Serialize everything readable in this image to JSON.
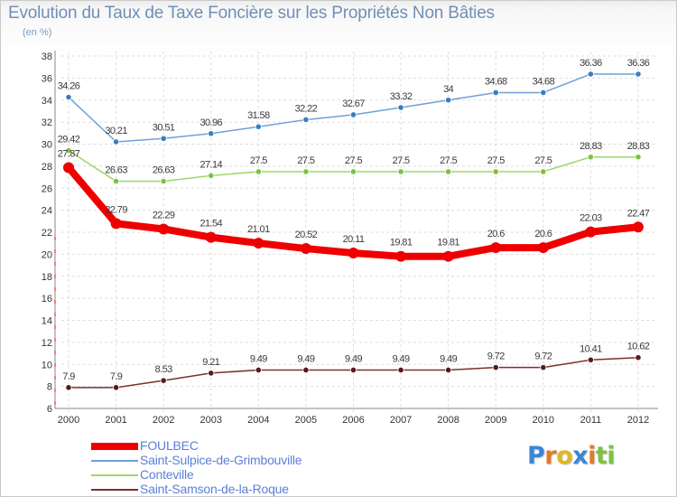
{
  "title": "Evolution du Taux de Taxe Foncière sur les Propriétés Non Bâties",
  "unit_label": "(en %)",
  "logo": {
    "letters": [
      {
        "ch": "P",
        "color": "#3a86d6"
      },
      {
        "ch": "r",
        "color": "#e07b24"
      },
      {
        "ch": "o",
        "color": "#e0b824"
      },
      {
        "ch": "x",
        "color": "#3a86d6"
      },
      {
        "ch": "i",
        "color": "#e07b24"
      },
      {
        "ch": "t",
        "color": "#7cc242"
      },
      {
        "ch": "i",
        "color": "#7cc242"
      }
    ]
  },
  "chart_data": {
    "type": "line",
    "x": [
      "2000",
      "2001",
      "2002",
      "2003",
      "2004",
      "2005",
      "2006",
      "2007",
      "2008",
      "2009",
      "2010",
      "2011",
      "2012"
    ],
    "yticks": [
      "6",
      "8",
      "10",
      "12",
      "14",
      "16",
      "18",
      "20",
      "22",
      "24",
      "26",
      "28",
      "30",
      "32",
      "34",
      "36",
      "38"
    ],
    "ylim": [
      6,
      38
    ],
    "grid": true,
    "series": [
      {
        "name": "Saint-Sulpice-de-Grimbouville",
        "color": "#6fa0d8",
        "marker": "#3a7cc4",
        "values": [
          34.26,
          30.21,
          30.51,
          30.96,
          31.58,
          32.22,
          32.67,
          33.32,
          34,
          34.68,
          34.68,
          36.36,
          36.36
        ],
        "labels": [
          "34.26",
          "30.21",
          "30.51",
          "30.96",
          "31.58",
          "32.22",
          "32.67",
          "33.32",
          "34",
          "34.68",
          "34.68",
          "36.36",
          "36.36"
        ]
      },
      {
        "name": "Conteville",
        "color": "#9ad86a",
        "marker": "#7cc242",
        "values": [
          29.42,
          26.63,
          26.63,
          27.14,
          27.5,
          27.5,
          27.5,
          27.5,
          27.5,
          27.5,
          27.5,
          28.83,
          28.83
        ],
        "labels": [
          "29.42",
          "26.63",
          "26.63",
          "27.14",
          "27.5",
          "27.5",
          "27.5",
          "27.5",
          "27.5",
          "27.5",
          "27.5",
          "28.83",
          "28.83"
        ]
      },
      {
        "name": "FOULBEC",
        "color": "#ee0000",
        "marker": "#ee0000",
        "values": [
          27.87,
          22.79,
          22.29,
          21.54,
          21.01,
          20.52,
          20.11,
          19.81,
          19.81,
          20.6,
          20.6,
          22.03,
          22.47
        ],
        "labels": [
          "27.87",
          "22.79",
          "22.29",
          "21.54",
          "21.01",
          "20.52",
          "20.11",
          "19.81",
          "19.81",
          "20.6",
          "20.6",
          "22.03",
          "22.47"
        ]
      },
      {
        "name": "Saint-Samson-de-la-Roque",
        "color": "#7a3030",
        "marker": "#5a1a1a",
        "values": [
          7.9,
          7.9,
          8.53,
          9.21,
          9.49,
          9.49,
          9.49,
          9.49,
          9.49,
          9.72,
          9.72,
          10.41,
          10.62
        ],
        "labels": [
          "7.9",
          "7.9",
          "8.53",
          "9.21",
          "9.49",
          "9.49",
          "9.49",
          "9.49",
          "9.49",
          "9.72",
          "9.72",
          "10.41",
          "10.62"
        ]
      }
    ],
    "legend": [
      {
        "name": "FOULBEC",
        "color": "#ee0000",
        "thick": true
      },
      {
        "name": "Saint-Sulpice-de-Grimbouville",
        "color": "#6fa0d8",
        "thick": false
      },
      {
        "name": "Conteville",
        "color": "#9ad86a",
        "thick": false
      },
      {
        "name": "Saint-Samson-de-la-Roque",
        "color": "#7a3030",
        "thick": false
      }
    ]
  }
}
